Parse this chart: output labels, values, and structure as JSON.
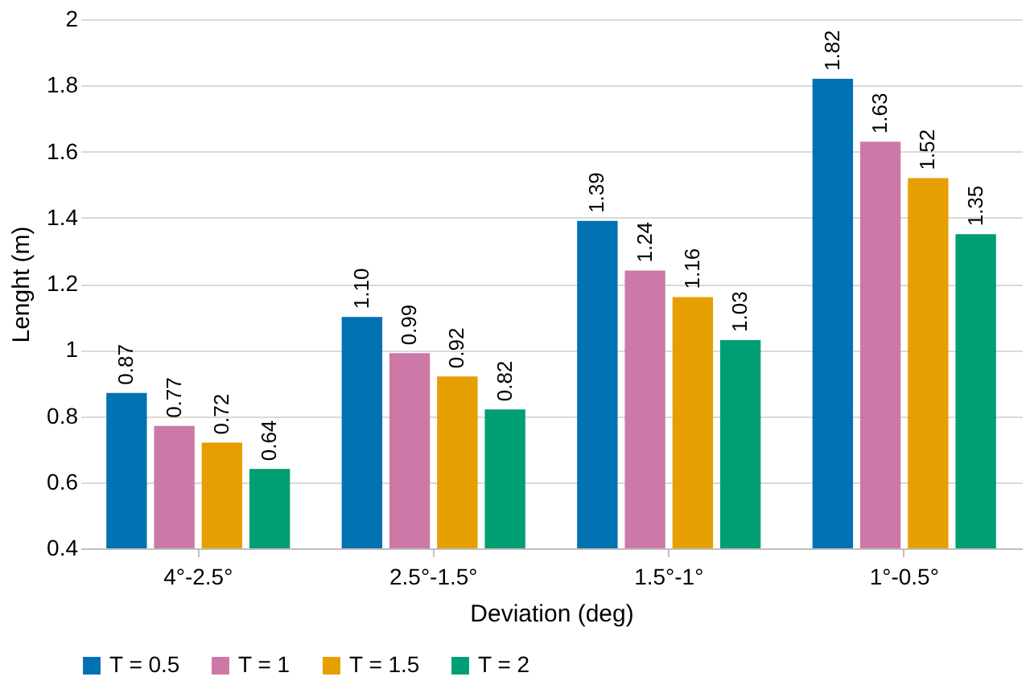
{
  "chart_data": {
    "type": "bar",
    "xlabel": "Deviation (deg)",
    "ylabel": "Lenght (m)",
    "categories": [
      "4°-2.5°",
      "2.5°-1.5°",
      "1.5°-1°",
      "1°-0.5°"
    ],
    "series": [
      {
        "name": "T = 0.5",
        "color": "#0072b2",
        "values": [
          0.87,
          1.1,
          1.39,
          1.82
        ],
        "value_labels": [
          "0.87",
          "1.10",
          "1.39",
          "1.82"
        ]
      },
      {
        "name": "T = 1",
        "color": "#cc79a7",
        "values": [
          0.77,
          0.99,
          1.24,
          1.63
        ],
        "value_labels": [
          "0.77",
          "0.99",
          "1.24",
          "1.63"
        ]
      },
      {
        "name": "T = 1.5",
        "color": "#e69f00",
        "values": [
          0.72,
          0.92,
          1.16,
          1.52
        ],
        "value_labels": [
          "0.72",
          "0.92",
          "1.16",
          "1.52"
        ]
      },
      {
        "name": "T = 2",
        "color": "#009e73",
        "values": [
          0.64,
          0.82,
          1.03,
          1.35
        ],
        "value_labels": [
          "0.64",
          "0.82",
          "1.03",
          "1.35"
        ]
      }
    ],
    "ylim": [
      0.4,
      2
    ],
    "yticks": [
      0.4,
      0.6,
      0.8,
      1,
      1.2,
      1.4,
      1.6,
      1.8,
      2
    ],
    "grid": "y",
    "legend": "bottom"
  }
}
